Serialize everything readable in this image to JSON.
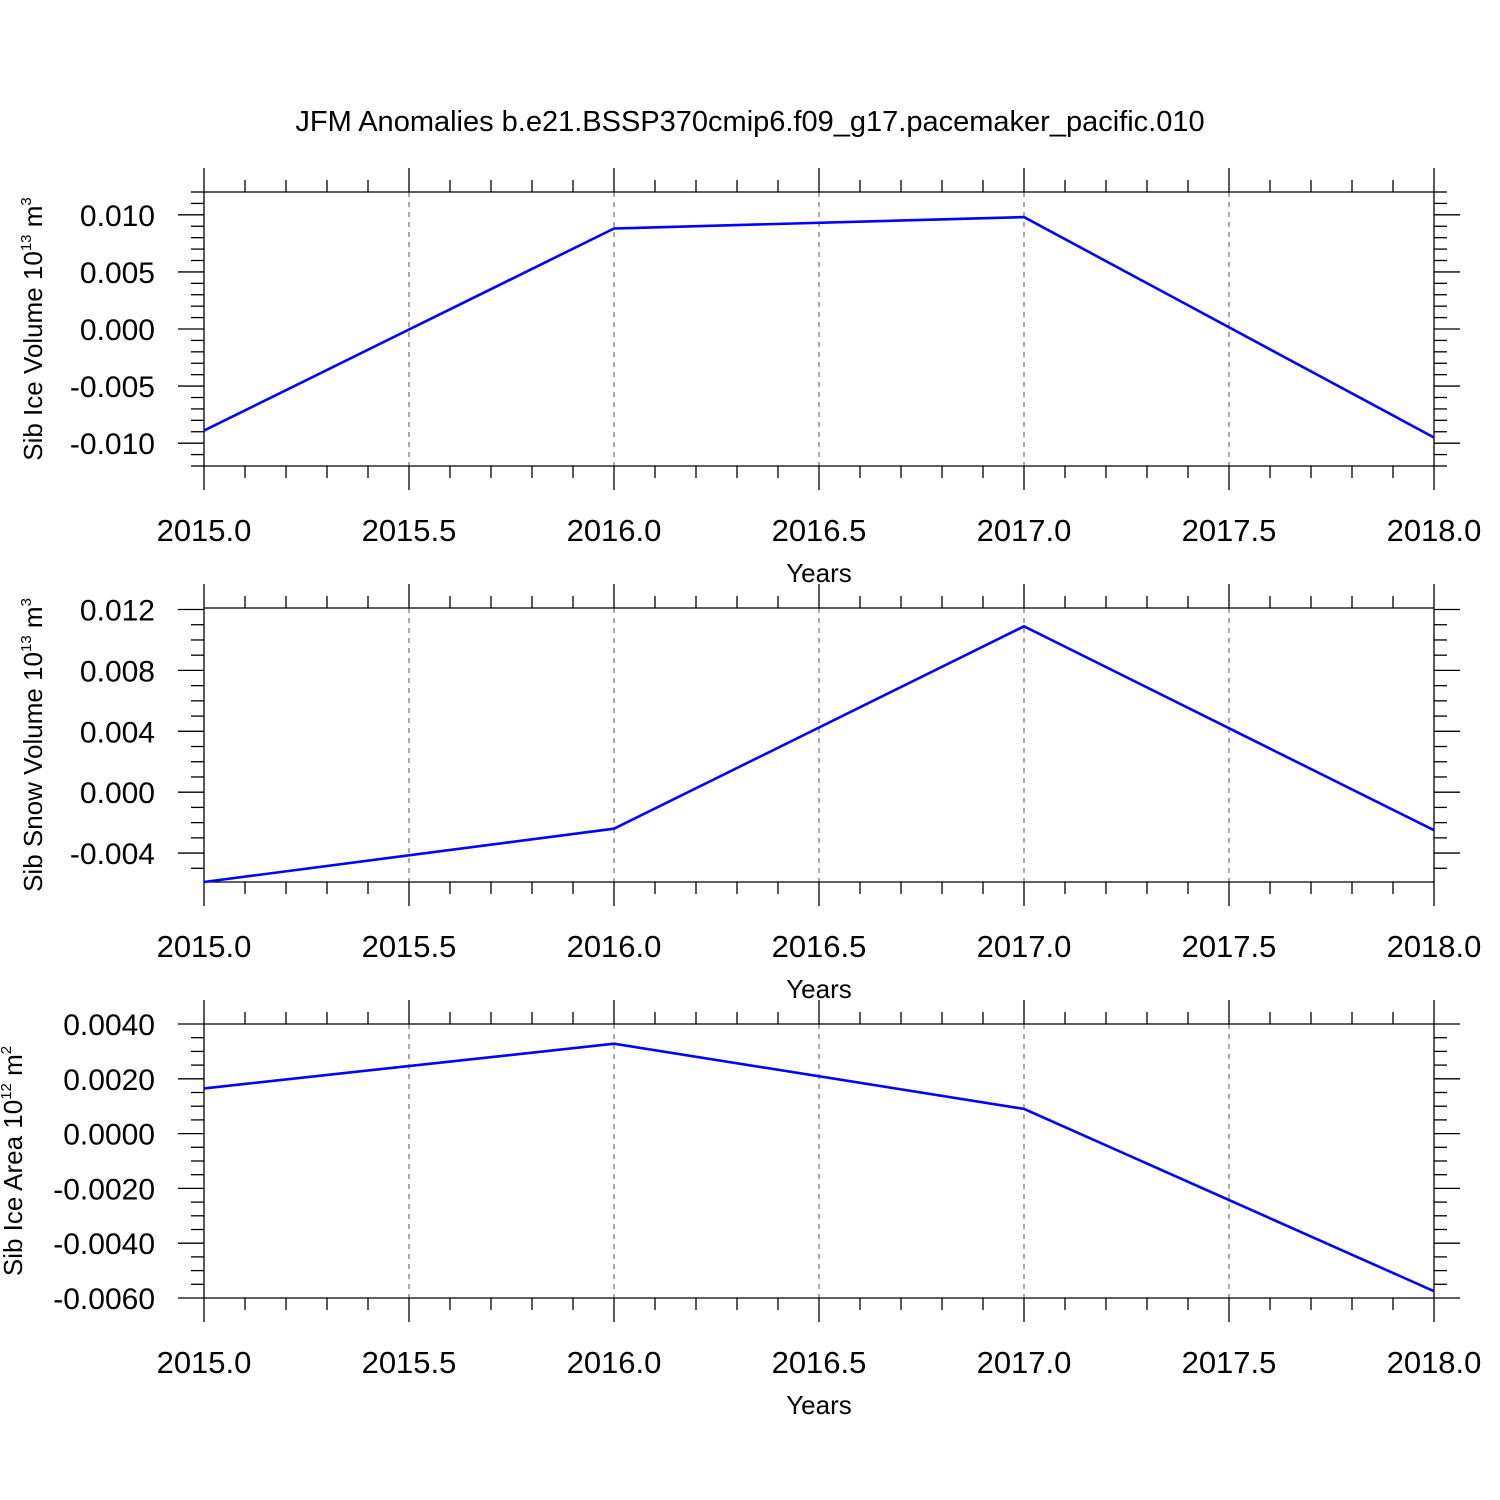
{
  "figure_title": "JFM Anomalies b.e21.BSSP370cmip6.f09_g17.pacemaker_pacific.010",
  "colors": {
    "line": "#0000ff",
    "axis": "#000000",
    "grid": "#666666"
  },
  "chart_data": [
    {
      "type": "line",
      "ylabel": {
        "text": "Sib Ice Volume 10",
        "exp": "13",
        "unit": " m",
        "unit_exp": "3"
      },
      "xlabel": "Years",
      "xlim": [
        2015.0,
        2018.0
      ],
      "ylim": [
        -0.012,
        0.012
      ],
      "x_ticks": [
        "2015.0",
        "2015.5",
        "2016.0",
        "2016.5",
        "2017.0",
        "2017.5",
        "2018.0"
      ],
      "y_ticks": [
        0.01,
        0.005,
        0.0,
        -0.005,
        -0.01
      ],
      "y_tick_labels": [
        "0.010",
        "0.005",
        "0.000",
        "-0.005",
        "-0.010"
      ],
      "y_minor_step": 0.001,
      "grid": "vertical dashed at major x ticks",
      "series": [
        {
          "x": [
            2015,
            2016,
            2017,
            2018
          ],
          "y": [
            -0.0089,
            0.0088,
            0.0098,
            -0.0095
          ]
        }
      ]
    },
    {
      "type": "line",
      "ylabel": {
        "text": "Sib Snow Volume 10",
        "exp": "13",
        "unit": " m",
        "unit_exp": "3"
      },
      "xlabel": "Years",
      "xlim": [
        2015.0,
        2018.0
      ],
      "ylim": [
        -0.0059,
        0.0121
      ],
      "x_ticks": [
        "2015.0",
        "2015.5",
        "2016.0",
        "2016.5",
        "2017.0",
        "2017.5",
        "2018.0"
      ],
      "y_ticks": [
        0.012,
        0.008,
        0.004,
        0.0,
        -0.004
      ],
      "y_tick_labels": [
        "0.012",
        "0.008",
        "0.004",
        "0.000",
        "-0.004"
      ],
      "y_minor_step": 0.001,
      "grid": "vertical dashed at major x ticks",
      "series": [
        {
          "x": [
            2015,
            2016,
            2017,
            2018
          ],
          "y": [
            -0.0059,
            -0.0024,
            0.0109,
            -0.0025
          ]
        }
      ]
    },
    {
      "type": "line",
      "ylabel": {
        "text": "Sib Ice Area 10",
        "exp": "12",
        "unit": " m",
        "unit_exp": "2"
      },
      "xlabel": "Years",
      "xlim": [
        2015.0,
        2018.0
      ],
      "ylim": [
        -0.006,
        0.004
      ],
      "x_ticks": [
        "2015.0",
        "2015.5",
        "2016.0",
        "2016.5",
        "2017.0",
        "2017.5",
        "2018.0"
      ],
      "y_ticks": [
        0.004,
        0.002,
        0.0,
        -0.002,
        -0.004,
        -0.006
      ],
      "y_tick_labels": [
        "0.0040",
        "0.0020",
        "0.0000",
        "-0.0020",
        "-0.0040",
        "-0.0060"
      ],
      "y_minor_step": 0.0005,
      "grid": "vertical dashed at major x ticks",
      "series": [
        {
          "x": [
            2015,
            2016,
            2017,
            2018
          ],
          "y": [
            0.00165,
            0.00328,
            0.0009,
            -0.00575
          ]
        }
      ]
    }
  ]
}
